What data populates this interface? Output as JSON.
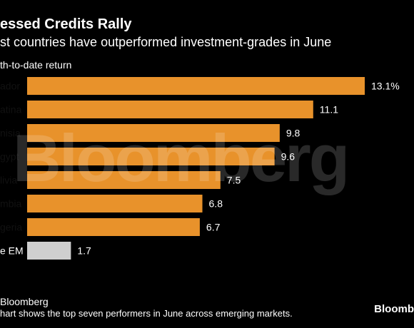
{
  "header": {
    "title": "essed Credits Rally",
    "subtitle": "st countries have outperformed investment-grades in June",
    "ylabel": "th-to-date return"
  },
  "footer": {
    "source": "Bloomberg",
    "note": "hart shows the top seven performers in June across emerging markets.",
    "logo": "Bloomb"
  },
  "watermark": "Bloomberg",
  "colors": {
    "bar": "#e8922b",
    "highlight_bar": "#cfcfcf",
    "background": "#000000",
    "text": "#ffffff"
  },
  "chart_data": {
    "type": "bar",
    "orientation": "horizontal",
    "categories": [
      "ador",
      "atina",
      "nisia",
      "gypt",
      "livia",
      "mbia",
      "geria",
      "e EM"
    ],
    "values": [
      13.1,
      11.1,
      9.8,
      9.6,
      7.5,
      6.8,
      6.7,
      1.7
    ],
    "value_labels": [
      "13.1%",
      "11.1",
      "9.8",
      "9.6",
      "7.5",
      "6.8",
      "6.7",
      "1.7"
    ],
    "highlight_index": 7,
    "title": "essed Credits Rally",
    "ylabel": "th-to-date return",
    "xlim": [
      0,
      13.1
    ],
    "grid": false,
    "legend": "none"
  }
}
